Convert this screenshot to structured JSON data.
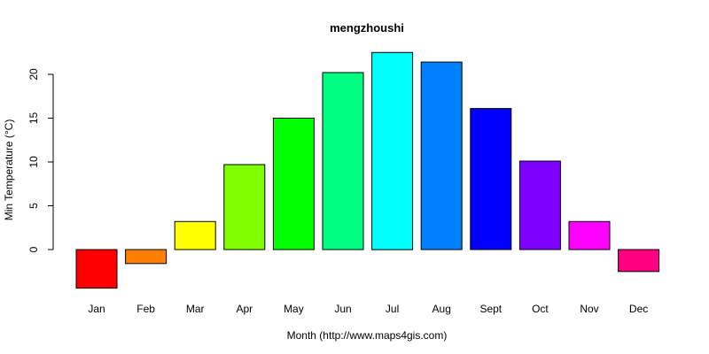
{
  "chart_data": {
    "type": "bar",
    "title": "mengzhoushi",
    "xlabel": "Month (http://www.maps4gis.com)",
    "ylabel": "Min Temperature (°C)",
    "categories": [
      "Jan",
      "Feb",
      "Mar",
      "Apr",
      "May",
      "Jun",
      "Jul",
      "Aug",
      "Sept",
      "Oct",
      "Nov",
      "Dec"
    ],
    "values": [
      -4.4,
      -1.6,
      3.2,
      9.7,
      15.0,
      20.2,
      22.5,
      21.4,
      16.1,
      10.1,
      3.2,
      -2.5
    ],
    "colors": [
      "#ff0000",
      "#ff8000",
      "#ffff00",
      "#80ff00",
      "#00ff00",
      "#00ff80",
      "#00ffff",
      "#0080ff",
      "#0000ff",
      "#8000ff",
      "#ff00ff",
      "#ff0080"
    ],
    "yticks": [
      0,
      5,
      10,
      15,
      20
    ],
    "ylim": [
      -4.4,
      22.5
    ],
    "grid": false,
    "legend": "none"
  }
}
